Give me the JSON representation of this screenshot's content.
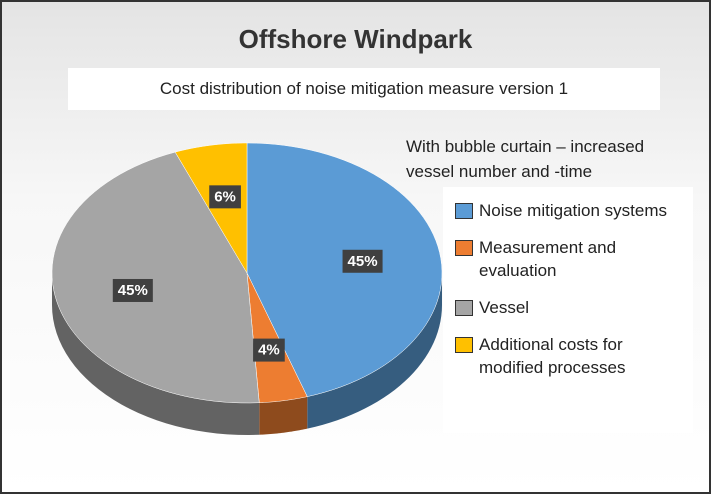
{
  "chart_data": {
    "type": "pie",
    "title": "Offshore Windpark",
    "subtitle": "Cost distribution of noise mitigation measure version 1",
    "annotation": [
      "With bubble curtain – increased",
      "vessel number and -time"
    ],
    "categories": [
      "Noise mitigation systems",
      "Measurement and evaluation",
      "Vessel",
      "Additional costs for modified processes"
    ],
    "values": [
      45,
      4,
      45,
      6
    ],
    "value_labels": [
      "45%",
      "4%",
      "45%",
      "6%"
    ],
    "colors": [
      "#5b9bd5",
      "#ed7d31",
      "#a5a5a5",
      "#ffc000"
    ]
  }
}
